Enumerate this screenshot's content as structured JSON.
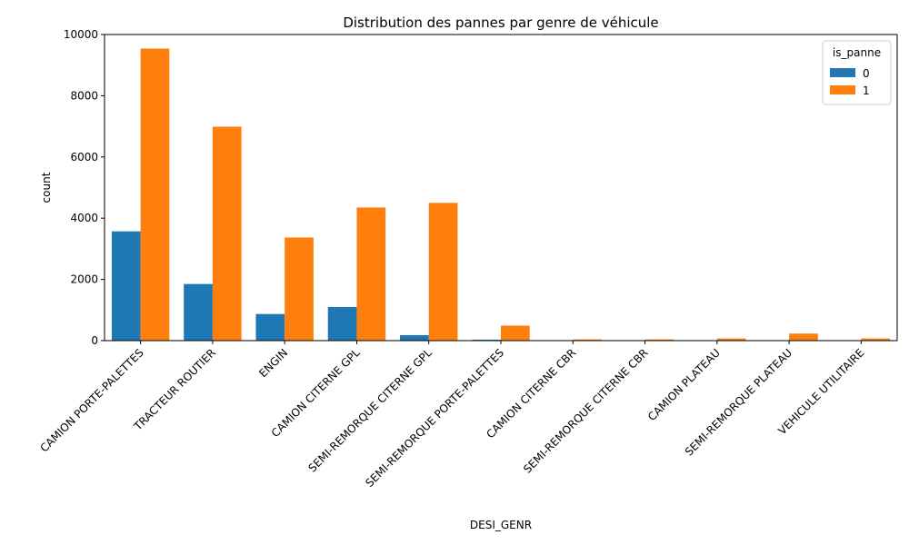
{
  "chart_data": {
    "type": "bar",
    "title": "Distribution des pannes par genre de véhicule",
    "xlabel": "DESI_GENR",
    "ylabel": "count",
    "ylim": [
      0,
      10000
    ],
    "yticks": [
      0,
      2000,
      4000,
      6000,
      8000,
      10000
    ],
    "grid": false,
    "legend": {
      "title": "is_panne",
      "placement": "top-right"
    },
    "categories": [
      "CAMION PORTE-PALETTES",
      "TRACTEUR ROUTIER",
      "ENGIN",
      "CAMION CITERNE GPL",
      "SEMI-REMORQUE CITERNE GPL",
      "SEMI-REMORQUE PORTE-PALETTES",
      "CAMION CITERNE CBR",
      "SEMI-REMORQUE CITERNE CBR",
      "CAMION PLATEAU",
      "SEMI-REMORQUE PLATEAU",
      "VEHICULE UTILITAIRE"
    ],
    "series": [
      {
        "name": "0",
        "color": "#1f77b4",
        "values": [
          3570,
          1850,
          870,
          1100,
          180,
          30,
          0,
          0,
          0,
          0,
          0
        ]
      },
      {
        "name": "1",
        "color": "#ff7f0e",
        "values": [
          9540,
          6990,
          3370,
          4350,
          4500,
          490,
          40,
          40,
          70,
          230,
          70
        ]
      }
    ]
  }
}
